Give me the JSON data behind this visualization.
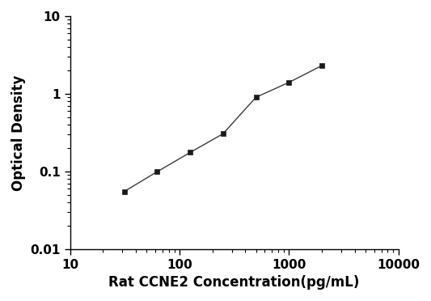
{
  "x": [
    31.25,
    62.5,
    125,
    250,
    500,
    1000,
    2000
  ],
  "y": [
    0.055,
    0.099,
    0.175,
    0.305,
    0.9,
    1.4,
    2.3
  ],
  "xlabel": "Rat CCNE2 Concentration(pg/mL)",
  "ylabel": "Optical Density",
  "xlim": [
    10,
    10000
  ],
  "ylim": [
    0.01,
    10
  ],
  "line_color": "#3a3a3a",
  "marker": "s",
  "marker_color": "#1a1a1a",
  "marker_size": 5,
  "linewidth": 1.0,
  "background_color": "#ffffff",
  "xtick_labels": [
    "10",
    "100",
    "1000",
    "10000"
  ],
  "xticks": [
    10,
    100,
    1000,
    10000
  ],
  "yticks": [
    0.01,
    0.1,
    1,
    10
  ],
  "ytick_labels": [
    "0.01",
    "0.1",
    "1",
    "10"
  ],
  "xlabel_fontsize": 12,
  "ylabel_fontsize": 12,
  "tick_fontsize": 11,
  "tick_fontweight": "bold"
}
